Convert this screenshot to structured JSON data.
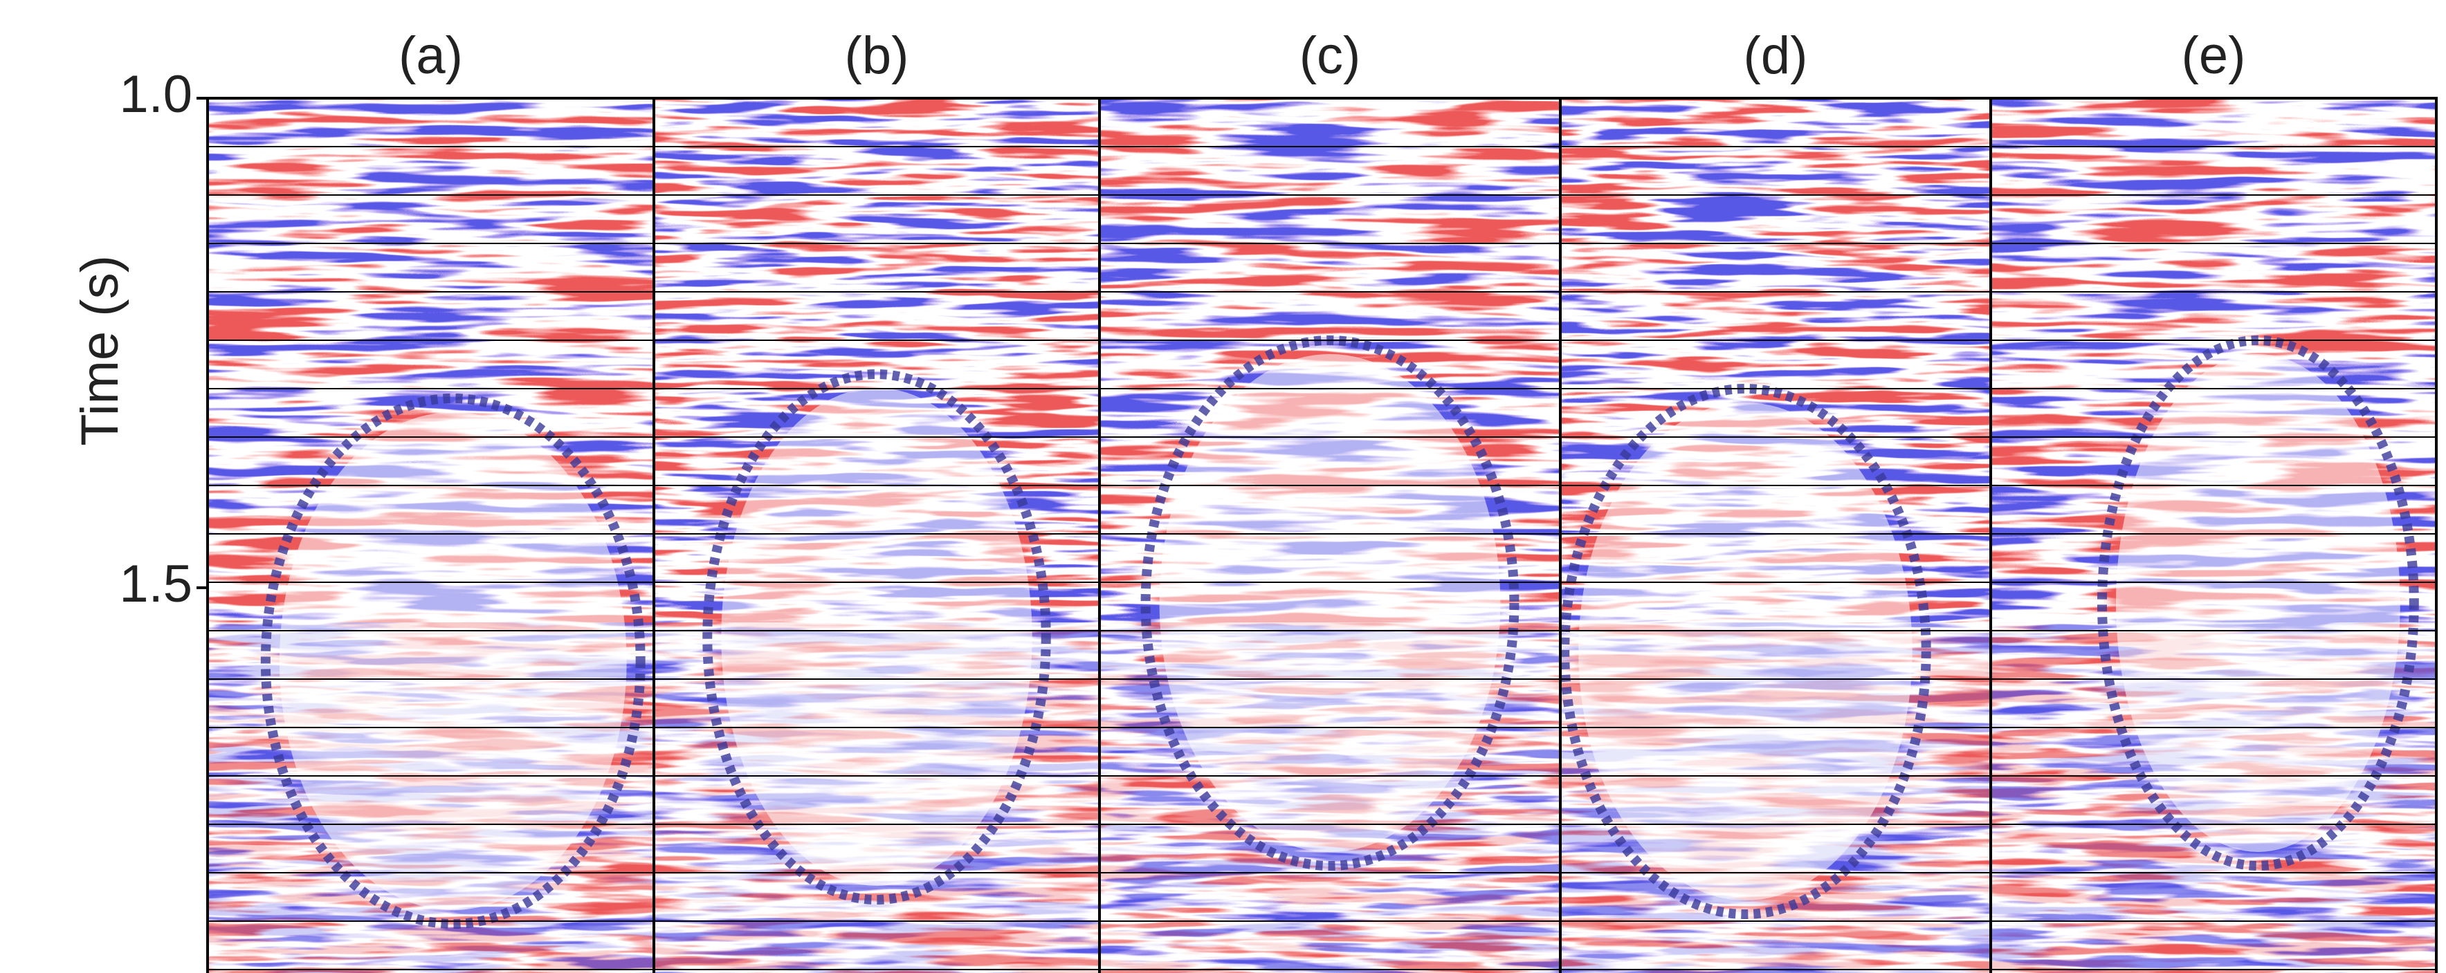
{
  "chart_data": {
    "type": "seismic",
    "panels": [
      "(a)",
      "(b)",
      "(c)",
      "(d)",
      "(e)"
    ],
    "ylabel": "Time (s)",
    "ylim": [
      1.0,
      1.89
    ],
    "yticks": [
      {
        "value": 1.0,
        "label": "1.0"
      },
      {
        "value": 1.5,
        "label": "1.5"
      }
    ],
    "y_inverted": true
  }
}
